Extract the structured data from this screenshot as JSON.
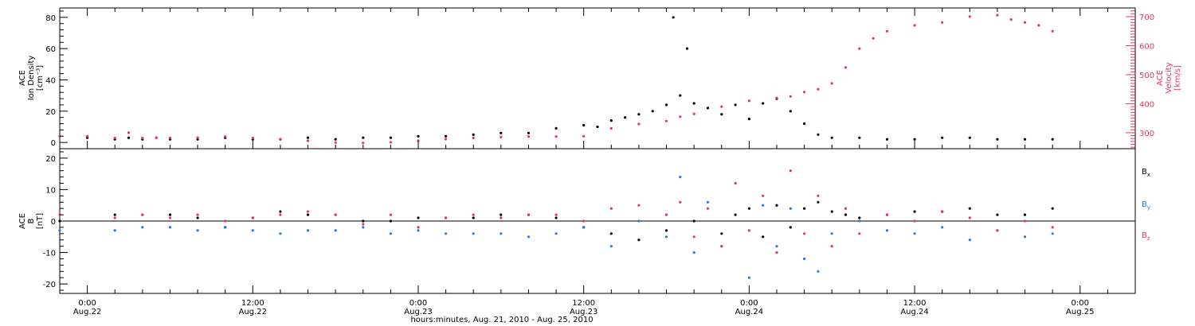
{
  "colors": {
    "black": "#000000",
    "pink": "#e8365f",
    "blue": "#1f7fdb"
  },
  "x_axis": {
    "title": "hours:minutes, Aug. 21, 2010 - Aug. 25, 2010",
    "ticks": [
      {
        "time": "0:00",
        "date": "Aug.22",
        "hours": 0
      },
      {
        "time": "12:00",
        "date": "Aug.22",
        "hours": 12
      },
      {
        "time": "0:00",
        "date": "Aug.23",
        "hours": 24
      },
      {
        "time": "12:00",
        "date": "Aug.23",
        "hours": 36
      },
      {
        "time": "0:00",
        "date": "Aug.24",
        "hours": 48
      },
      {
        "time": "12:00",
        "date": "Aug.24",
        "hours": 60
      },
      {
        "time": "0:00",
        "date": "Aug.25",
        "hours": 72
      }
    ],
    "range_hours": [
      -2,
      76
    ]
  },
  "chart_data": [
    {
      "type": "scatter",
      "panel": "plasma",
      "ylabel_left": [
        "ACE",
        "Ion Density",
        "[cm⁻³]"
      ],
      "ylabel_right": [
        "ACE",
        "Velocity",
        "[km/s]"
      ],
      "left_ylim": [
        -4,
        86
      ],
      "left_ticks": [
        "0",
        "20",
        "40",
        "60",
        "80"
      ],
      "left_tick_values": [
        0,
        20,
        40,
        60,
        80
      ],
      "right_ylim": [
        245,
        730
      ],
      "right_ticks": [
        "300",
        "400",
        "500",
        "600",
        "700"
      ],
      "right_tick_values": [
        300,
        400,
        500,
        600,
        700
      ],
      "series": [
        {
          "color": "black",
          "axis": "left",
          "hours": [
            -2,
            0,
            2,
            3,
            4,
            5,
            6,
            8,
            10,
            12,
            14,
            16,
            18,
            20,
            22,
            24,
            26,
            28,
            30,
            32,
            34,
            36,
            37,
            38,
            39,
            40,
            41,
            42,
            42.5,
            43,
            43.5,
            44,
            45,
            46,
            47,
            48,
            49,
            50,
            51,
            52,
            53,
            54,
            56,
            58,
            60,
            62,
            64,
            66,
            68,
            70
          ],
          "values": [
            4,
            3,
            2,
            3,
            2,
            3,
            2,
            2,
            3,
            2,
            2,
            3,
            2,
            3,
            3,
            4,
            4,
            5,
            6,
            6,
            9,
            11,
            10,
            14,
            16,
            18,
            20,
            24,
            80,
            30,
            60,
            25,
            22,
            18,
            24,
            15,
            25,
            28,
            20,
            12,
            5,
            3,
            3,
            2,
            2,
            3,
            3,
            2,
            2,
            2
          ]
        },
        {
          "color": "pink",
          "axis": "right",
          "hours": [
            -2,
            0,
            2,
            3,
            4,
            5,
            6,
            8,
            10,
            12,
            14,
            16,
            18,
            20,
            22,
            24,
            26,
            28,
            30,
            32,
            34,
            36,
            38,
            40,
            42,
            43,
            44,
            46,
            48,
            50,
            51,
            52,
            53,
            54,
            55,
            56,
            57,
            58,
            60,
            62,
            64,
            66,
            67,
            68,
            69,
            70
          ],
          "values": [
            288,
            288,
            282,
            300,
            282,
            283,
            282,
            283,
            287,
            282,
            278,
            272,
            266,
            265,
            267,
            273,
            278,
            282,
            285,
            287,
            287,
            288,
            315,
            330,
            340,
            355,
            365,
            390,
            410,
            420,
            425,
            440,
            450,
            470,
            525,
            590,
            625,
            650,
            670,
            680,
            700,
            705,
            690,
            680,
            670,
            650
          ]
        }
      ]
    },
    {
      "type": "scatter",
      "panel": "magnetic",
      "ylabel_left": [
        "ACE",
        "B",
        "[nT]"
      ],
      "ylim": [
        -23,
        23
      ],
      "ticks": [
        "-20",
        "-10",
        "0",
        "10",
        "20"
      ],
      "tick_values": [
        -20,
        -10,
        0,
        10,
        20
      ],
      "series": [
        {
          "name": "Bx",
          "color": "black",
          "hours": [
            -2,
            2,
            4,
            6,
            8,
            10,
            12,
            14,
            16,
            18,
            20,
            22,
            24,
            26,
            28,
            30,
            32,
            34,
            36,
            38,
            40,
            42,
            44,
            46,
            47,
            48,
            49,
            50,
            51,
            52,
            53,
            54,
            55,
            56,
            58,
            60,
            62,
            64,
            66,
            68,
            70
          ],
          "values": [
            0,
            2,
            2,
            2,
            1,
            -2,
            1,
            3,
            2,
            2,
            0,
            0,
            1,
            1,
            1,
            2,
            2,
            1,
            -2,
            -4,
            -6,
            -3,
            0,
            -4,
            2,
            4,
            -5,
            5,
            -2,
            4,
            6,
            3,
            2,
            1,
            2,
            3,
            3,
            4,
            2,
            2,
            4
          ]
        },
        {
          "name": "By",
          "color": "blue",
          "hours": [
            -2,
            2,
            4,
            6,
            8,
            10,
            12,
            14,
            16,
            18,
            20,
            22,
            24,
            26,
            28,
            30,
            32,
            34,
            36,
            38,
            40,
            42,
            43,
            44,
            45,
            46,
            47,
            48,
            49,
            50,
            51,
            52,
            53,
            54,
            55,
            56,
            58,
            60,
            62,
            64,
            66,
            68,
            70
          ],
          "values": [
            -3,
            -3,
            -2,
            -2,
            -3,
            -2,
            -3,
            -4,
            -3,
            -3,
            -2,
            -4,
            -3,
            -4,
            -4,
            -4,
            -5,
            -4,
            -2,
            -8,
            0,
            -5,
            14,
            -10,
            6,
            -8,
            12,
            -18,
            5,
            -8,
            4,
            -12,
            -16,
            -4,
            4,
            0,
            -3,
            -4,
            -2,
            -6,
            -3,
            -5,
            -4
          ]
        },
        {
          "name": "Bz",
          "color": "pink",
          "hours": [
            -2,
            2,
            4,
            6,
            8,
            10,
            12,
            14,
            16,
            18,
            20,
            22,
            24,
            26,
            28,
            30,
            32,
            34,
            36,
            38,
            40,
            42,
            43,
            44,
            45,
            46,
            47,
            48,
            49,
            50,
            51,
            52,
            53,
            54,
            55,
            56,
            58,
            60,
            62,
            64,
            66,
            68,
            70
          ],
          "values": [
            2,
            1,
            2,
            1,
            2,
            0,
            1,
            2,
            3,
            2,
            -1,
            2,
            -2,
            1,
            2,
            1,
            2,
            2,
            0,
            4,
            5,
            2,
            6,
            -5,
            4,
            -8,
            12,
            -3,
            8,
            -10,
            16,
            -4,
            8,
            -8,
            4,
            -4,
            2,
            0,
            3,
            1,
            -3,
            0,
            -2
          ]
        }
      ],
      "legend": [
        {
          "name": "B",
          "sub": "x",
          "color": "black"
        },
        {
          "name": "B",
          "sub": "y",
          "color": "blue"
        },
        {
          "name": "B",
          "sub": "z",
          "color": "pink"
        }
      ]
    }
  ]
}
